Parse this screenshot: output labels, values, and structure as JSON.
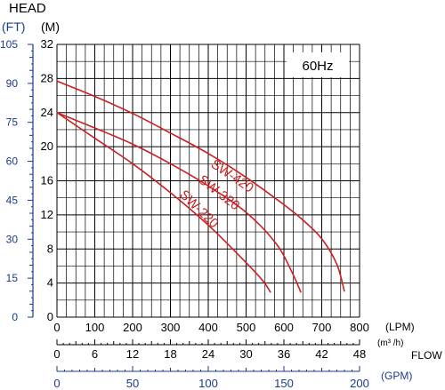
{
  "chart_data": {
    "type": "line",
    "title": "HEAD",
    "badge": "60Hz",
    "y_unit_ft": "(FT)",
    "y_unit_m": "(M)",
    "flow_label": "FLOW",
    "unit_lpm": "(LPM)",
    "unit_m3h": "(m³ /h)",
    "unit_gpm": "(GPM)",
    "ylim": [
      0,
      32
    ],
    "xlim": [
      0,
      800
    ],
    "grid": true,
    "y_ticks_m": [
      "0",
      "4",
      "8",
      "12",
      "16",
      "20",
      "24",
      "28",
      "32"
    ],
    "y_ticks_ft": [
      "0",
      "15",
      "30",
      "45",
      "60",
      "75",
      "90",
      "105"
    ],
    "x_ticks_lpm": [
      "0",
      "100",
      "200",
      "300",
      "400",
      "500",
      "600",
      "700",
      "800"
    ],
    "x_ticks_m3h": [
      "0",
      "6",
      "12",
      "18",
      "24",
      "30",
      "36",
      "42",
      "48"
    ],
    "x_ticks_gpm": [
      "0",
      "50",
      "100",
      "150",
      "200"
    ],
    "colors": {
      "curve": "#cc1f1f",
      "ft_axis": "#1a3a8c",
      "grid": "#000000"
    },
    "series": [
      {
        "name": "SW-420",
        "x": [
          0,
          100,
          200,
          300,
          400,
          500,
          600,
          650,
          700,
          740,
          760
        ],
        "y": [
          27.7,
          25.9,
          23.9,
          21.6,
          19.2,
          16.4,
          13.2,
          11.4,
          9.2,
          6.2,
          3.0
        ]
      },
      {
        "name": "SW-320",
        "x": [
          0,
          100,
          200,
          300,
          400,
          500,
          580,
          620,
          645
        ],
        "y": [
          24.0,
          22.2,
          20.3,
          18.0,
          15.4,
          12.3,
          8.6,
          5.4,
          2.9
        ]
      },
      {
        "name": "SW-220",
        "x": [
          0,
          100,
          200,
          300,
          400,
          480,
          540,
          565
        ],
        "y": [
          24.0,
          21.0,
          18.0,
          14.6,
          10.8,
          7.3,
          4.5,
          2.9
        ]
      }
    ]
  }
}
